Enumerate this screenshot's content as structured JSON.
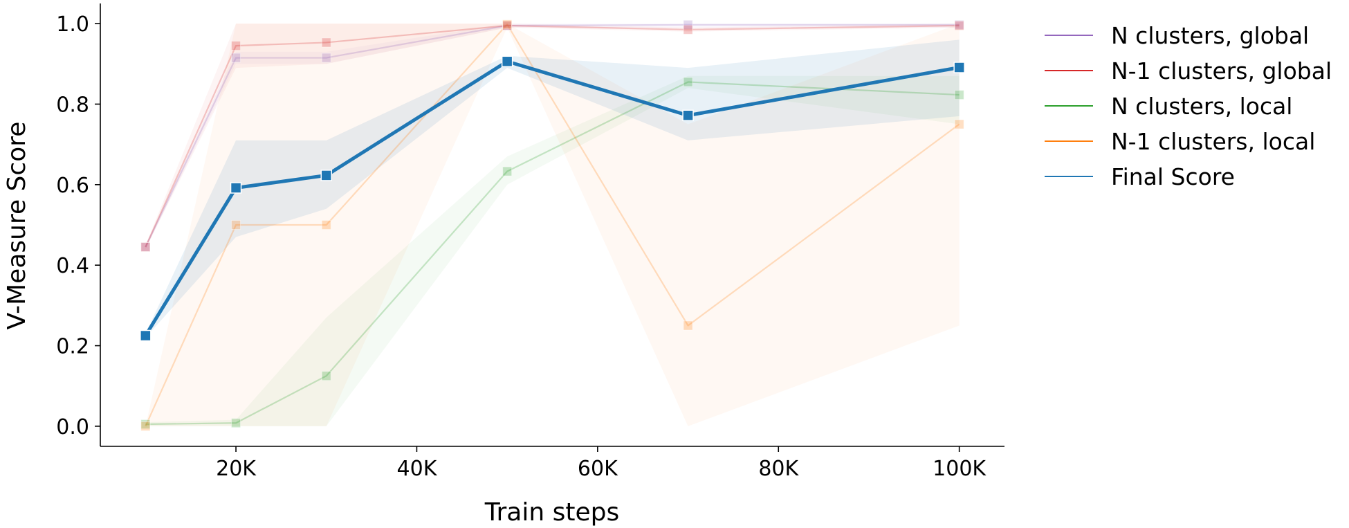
{
  "chart_data": {
    "type": "line",
    "title": "",
    "xlabel": "Train steps",
    "ylabel": "V-Measure Score",
    "x": [
      10000,
      20000,
      30000,
      50000,
      70000,
      100000
    ],
    "xlim": [
      5000,
      105000
    ],
    "ylim": [
      -0.05,
      1.05
    ],
    "xticks": [
      20000,
      40000,
      60000,
      80000,
      100000
    ],
    "xtick_labels": [
      "20K",
      "40K",
      "60K",
      "80K",
      "100K"
    ],
    "yticks": [
      0.0,
      0.2,
      0.4,
      0.6,
      0.8,
      1.0
    ],
    "ytick_labels": [
      "0.0",
      "0.2",
      "0.4",
      "0.6",
      "0.8",
      "1.0"
    ],
    "grid": false,
    "legend_position": "outside-right",
    "marker": "square",
    "series": [
      {
        "name": "N clusters, global",
        "color": "#9467bd",
        "faded": true,
        "values": [
          0.445,
          0.915,
          0.915,
          0.995,
          0.997,
          0.997
        ],
        "ci_low": [
          0.44,
          0.9,
          0.9,
          0.99,
          0.99,
          0.99
        ],
        "ci_high": [
          0.45,
          0.93,
          0.93,
          1.0,
          1.0,
          1.0
        ]
      },
      {
        "name": "N-1 clusters, global",
        "color": "#d62728",
        "faded": true,
        "values": [
          0.445,
          0.945,
          0.953,
          0.995,
          0.985,
          0.995
        ],
        "ci_low": [
          0.44,
          0.89,
          0.9,
          0.99,
          0.98,
          0.99
        ],
        "ci_high": [
          0.45,
          1.0,
          1.0,
          1.0,
          0.99,
          1.0
        ]
      },
      {
        "name": "N clusters, local",
        "color": "#2ca02c",
        "faded": true,
        "values": [
          0.005,
          0.008,
          0.125,
          0.633,
          0.855,
          0.823
        ],
        "ci_low": [
          0.0,
          0.0,
          0.0,
          0.6,
          0.84,
          0.75
        ],
        "ci_high": [
          0.01,
          0.016,
          0.27,
          0.67,
          0.87,
          0.87
        ]
      },
      {
        "name": "N-1 clusters, local",
        "color": "#ff7f0e",
        "faded": true,
        "values": [
          0.0,
          0.5,
          0.5,
          0.998,
          0.25,
          0.75
        ],
        "ci_low": [
          0.0,
          0.0,
          0.0,
          0.99,
          0.0,
          0.25
        ],
        "ci_high": [
          0.0,
          1.0,
          1.0,
          1.0,
          0.75,
          1.0
        ]
      },
      {
        "name": "Final Score",
        "color": "#1f77b4",
        "faded": false,
        "values": [
          0.225,
          0.592,
          0.623,
          0.906,
          0.772,
          0.891
        ],
        "ci_low": [
          0.22,
          0.47,
          0.54,
          0.89,
          0.71,
          0.77
        ],
        "ci_high": [
          0.23,
          0.71,
          0.71,
          0.92,
          0.89,
          0.96
        ]
      }
    ]
  }
}
